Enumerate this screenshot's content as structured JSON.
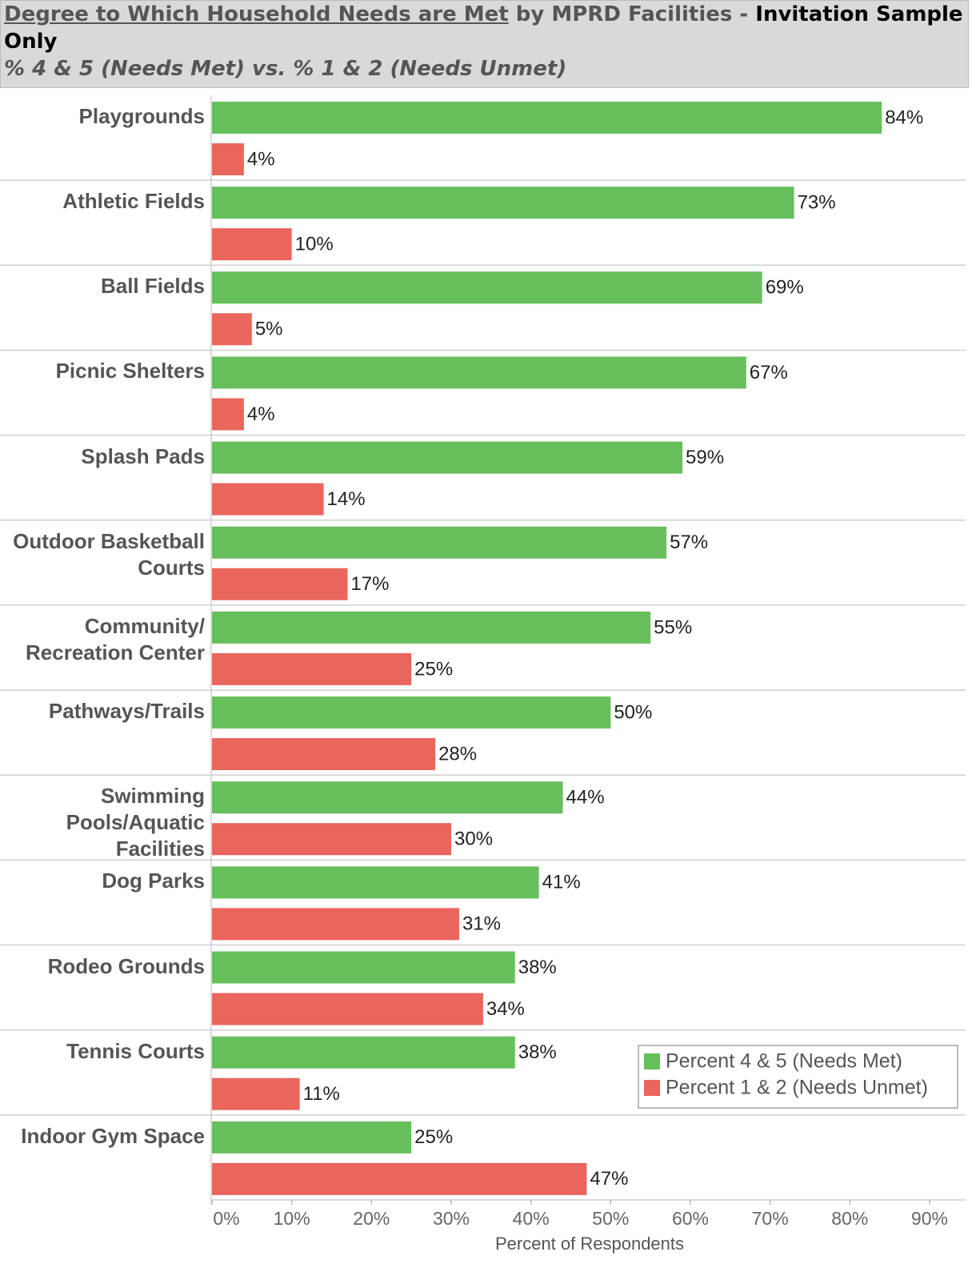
{
  "chart_data": {
    "type": "bar",
    "orientation": "horizontal",
    "title": [
      "Degree to Which Household Needs are Met",
      " by MPRD Facilities - ",
      "Invitation Sample Only"
    ],
    "subtitle": "% 4 & 5 (Needs Met) vs. % 1 & 2 (Needs Unmet)",
    "x_label": "Percent of Respondents",
    "categories": [
      "Playgrounds",
      "Athletic Fields",
      "Ball Fields",
      "Picnic Shelters",
      "Splash Pads",
      "Outdoor Basketball Courts",
      "Community/ Recreation Center",
      "Pathways/Trails",
      "Swimming Pools/Aquatic Facilities",
      "Dog Parks",
      "Rodeo Grounds",
      "Tennis Courts",
      "Indoor Gym Space"
    ],
    "series": [
      {
        "name": "Percent 4 & 5 (Needs Met)",
        "color": "#66bf5b",
        "values": [
          84,
          73,
          69,
          67,
          59,
          57,
          55,
          50,
          44,
          41,
          38,
          38,
          25
        ],
        "value_labels": [
          "84%",
          "73%",
          "69%",
          "67%",
          "59%",
          "57%",
          "55%",
          "50%",
          "44%",
          "41%",
          "38%",
          "38%",
          "25%"
        ]
      },
      {
        "name": "Percent 1 & 2 (Needs Unmet)",
        "color": "#ea655c",
        "values": [
          4,
          10,
          5,
          4,
          14,
          17,
          25,
          28,
          30,
          31,
          34,
          11,
          47
        ],
        "value_labels": [
          "4%",
          "10%",
          "5%",
          "4%",
          "14%",
          "17%",
          "25%",
          "28%",
          "30%",
          "31%",
          "34%",
          "11%",
          "47%"
        ]
      }
    ],
    "xlim": [
      0,
      90
    ],
    "xticks": [
      {
        "value": 0,
        "label": "0%"
      },
      {
        "value": 10,
        "label": "10%"
      },
      {
        "value": 20,
        "label": "20%"
      },
      {
        "value": 30,
        "label": "30%"
      },
      {
        "value": 40,
        "label": "40%"
      },
      {
        "value": 50,
        "label": "50%"
      },
      {
        "value": 60,
        "label": "60%"
      },
      {
        "value": 70,
        "label": "70%"
      },
      {
        "value": 80,
        "label": "80%"
      },
      {
        "value": 90,
        "label": "90%"
      }
    ],
    "legend": "lower right"
  }
}
